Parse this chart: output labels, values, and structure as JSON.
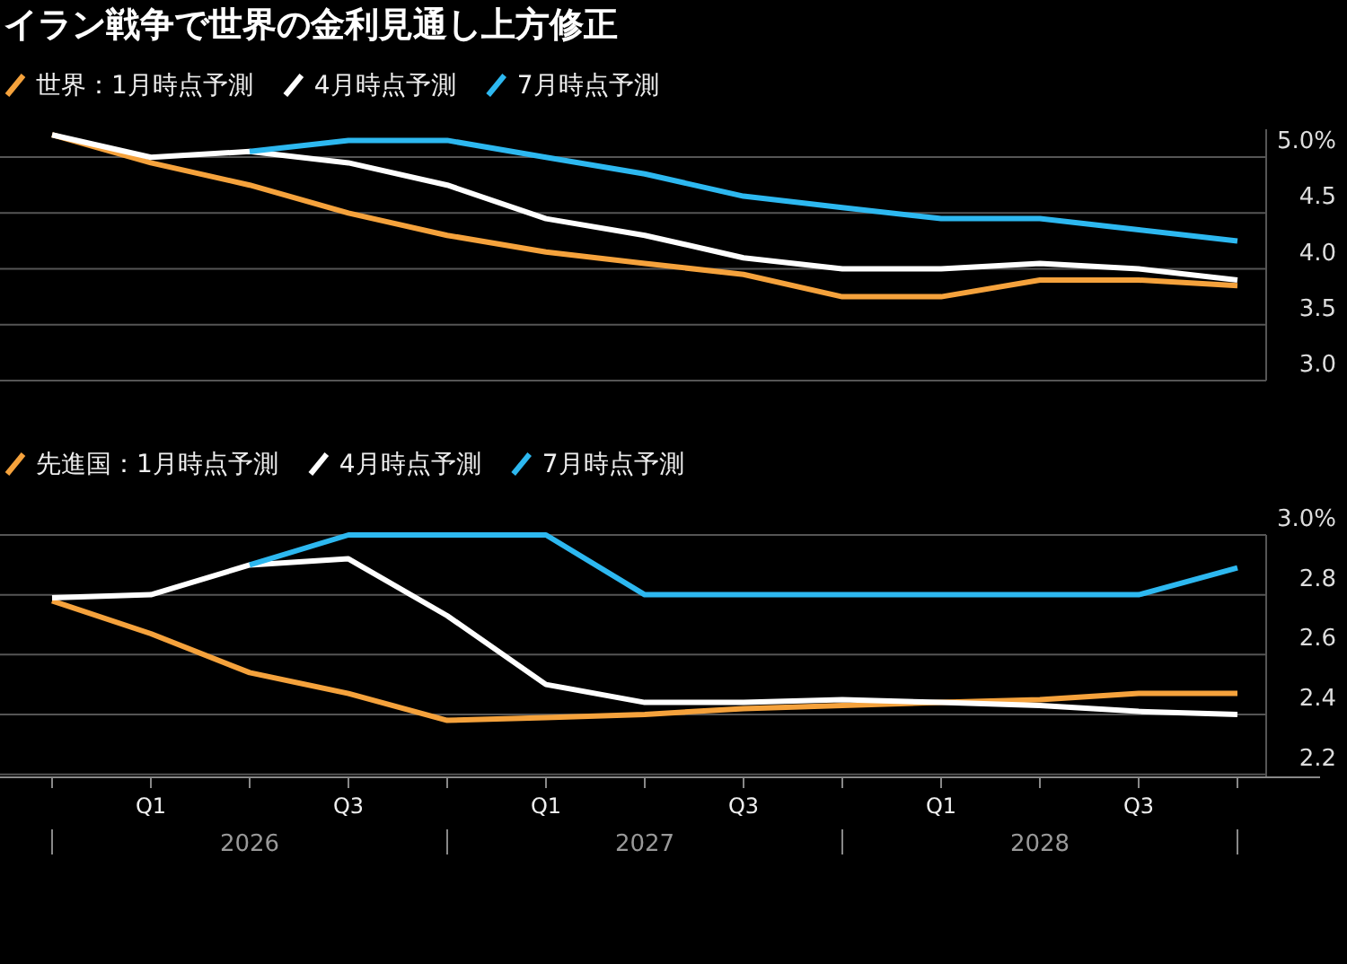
{
  "chart_data": [
    {
      "type": "line",
      "title": "イラン戦争で世界の金利見通し上方修正",
      "categories": [
        null,
        null,
        null,
        null,
        null,
        null,
        null,
        null,
        null,
        null,
        null,
        null,
        null
      ],
      "tick_labels": "y",
      "ylim": [
        3.0,
        5.25
      ],
      "yticks": [
        {
          "value": 5,
          "label": "5.0%"
        },
        4.5,
        {
          "value": 4,
          "label": "4.0"
        },
        3.5,
        {
          "value": 3,
          "label": "3.0"
        }
      ],
      "grid": "y",
      "legend": "top left",
      "marker": "none",
      "line_style": "solid",
      "series": [
        {
          "name": "世界：1月時点予測",
          "color": "#f5a23c",
          "values": [
            5.2,
            4.95,
            4.75,
            4.5,
            4.3,
            4.15,
            4.05,
            3.95,
            3.75,
            3.75,
            3.9,
            3.9,
            3.85
          ]
        },
        {
          "name": "4月時点予測",
          "color": "#ffffff",
          "values": [
            5.2,
            5.0,
            5.05,
            4.95,
            4.75,
            4.45,
            4.3,
            4.1,
            4.0,
            4.0,
            4.05,
            4.0,
            3.9
          ]
        },
        {
          "name": "7月時点予測",
          "color": "#2db8f0",
          "values": [
            null,
            null,
            5.05,
            5.15,
            5.15,
            5.0,
            4.85,
            4.65,
            4.55,
            4.45,
            4.45,
            4.35,
            4.25
          ]
        }
      ]
    },
    {
      "type": "line",
      "categories": [
        null,
        "Q1",
        null,
        "Q3",
        null,
        "Q1",
        null,
        "Q3",
        null,
        "Q1",
        null,
        "Q3",
        null
      ],
      "ylim": [
        2.19,
        3.0
      ],
      "yticks": [
        {
          "value": 3,
          "label": "3.0%"
        },
        2.8,
        2.6,
        2.4,
        2.2
      ],
      "grid": "y",
      "legend": "top left",
      "marker": "none",
      "line_style": "solid",
      "annotations": [
        "2026",
        "2027",
        "2028"
      ],
      "series": [
        {
          "name": "先進国：1月時点予測",
          "color": "#f5a23c",
          "values": [
            2.78,
            2.67,
            2.54,
            2.47,
            2.38,
            2.39,
            2.4,
            2.42,
            2.43,
            2.44,
            2.45,
            2.47,
            2.47
          ]
        },
        {
          "name": "4月時点予測",
          "color": "#ffffff",
          "values": [
            2.79,
            2.8,
            2.9,
            2.92,
            2.73,
            2.5,
            2.44,
            2.44,
            2.45,
            2.44,
            2.43,
            2.41,
            2.4
          ]
        },
        {
          "name": "7月時点予測",
          "color": "#2db8f0",
          "values": [
            null,
            null,
            2.9,
            3.0,
            3.0,
            3.0,
            2.8,
            2.8,
            2.8,
            2.8,
            2.8,
            2.8,
            2.89
          ]
        }
      ]
    }
  ]
}
